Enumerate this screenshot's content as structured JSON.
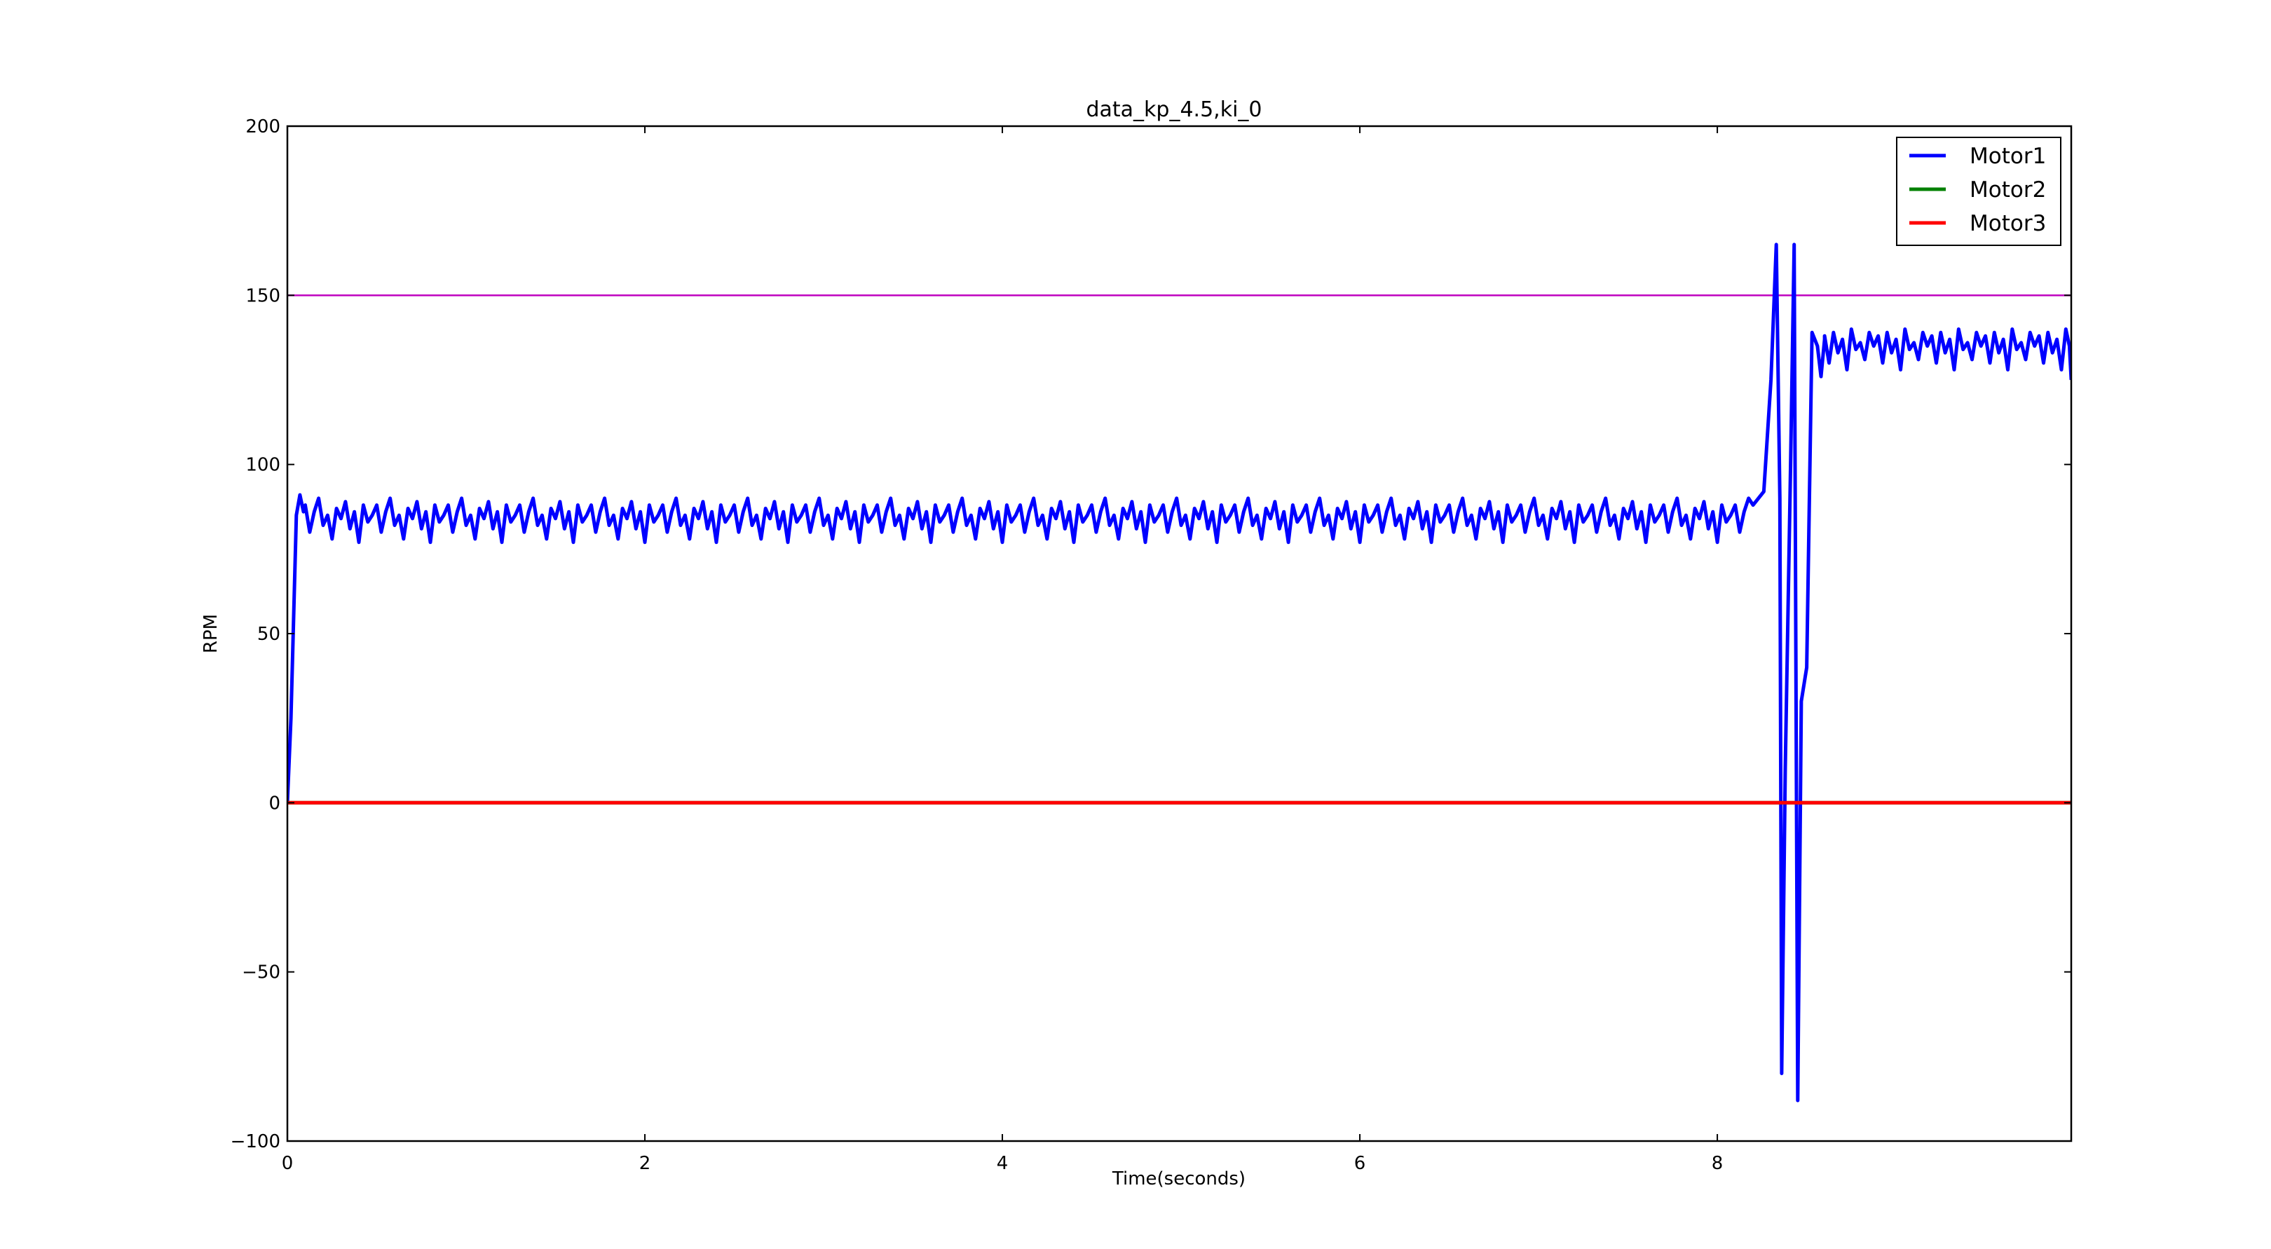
{
  "chart_data": {
    "type": "line",
    "title": "data_kp_4.5,ki_0",
    "xlabel": "Time(seconds)",
    "ylabel": "RPM",
    "xlim": [
      0,
      9.98
    ],
    "ylim": [
      -100,
      200
    ],
    "xticks": [
      0,
      2,
      4,
      6,
      8
    ],
    "yticks": [
      -100,
      -50,
      0,
      50,
      100,
      150,
      200
    ],
    "xtick_labels": [
      "0",
      "2",
      "4",
      "6",
      "8"
    ],
    "ytick_labels": [
      "−100",
      "−50",
      "0",
      "50",
      "100",
      "150",
      "200"
    ],
    "grid": false,
    "legend_position": "top-right",
    "reference_line": {
      "y": 150,
      "color": "#bf00bf"
    },
    "series": [
      {
        "name": "Motor1",
        "color": "#0000ff",
        "steady_segments": [
          {
            "x_start": 0.1,
            "x_end": 8.2,
            "base": 84,
            "pattern": [
              88,
              80,
              86,
              90,
              82,
              85,
              78,
              87,
              84,
              89,
              81,
              86,
              77,
              88,
              83,
              85
            ]
          },
          {
            "x_start": 8.6,
            "x_end": 9.97,
            "base": 135,
            "pattern": [
              138,
              130,
              139,
              133,
              137,
              128,
              140,
              134,
              136,
              131,
              139,
              135
            ]
          }
        ],
        "points": [
          [
            0,
            0
          ],
          [
            0.02,
            25
          ],
          [
            0.05,
            85
          ],
          [
            0.07,
            91
          ],
          [
            0.09,
            86
          ],
          [
            8.2,
            88
          ],
          [
            8.26,
            92
          ],
          [
            8.3,
            125
          ],
          [
            8.33,
            165
          ],
          [
            8.35,
            90
          ],
          [
            8.36,
            -80
          ],
          [
            8.38,
            10
          ],
          [
            8.41,
            100
          ],
          [
            8.43,
            165
          ],
          [
            8.45,
            -88
          ],
          [
            8.47,
            30
          ],
          [
            8.5,
            40
          ],
          [
            8.53,
            139
          ],
          [
            8.56,
            135
          ],
          [
            8.58,
            126
          ],
          [
            8.6,
            137
          ],
          [
            9.97,
            135
          ],
          [
            9.98,
            125
          ]
        ]
      },
      {
        "name": "Motor2",
        "color": "#008000",
        "x": [
          0,
          9.98
        ],
        "y": [
          0,
          0
        ]
      },
      {
        "name": "Motor3",
        "color": "#ff0000",
        "x": [
          0,
          9.98
        ],
        "y": [
          0,
          0
        ]
      }
    ]
  }
}
